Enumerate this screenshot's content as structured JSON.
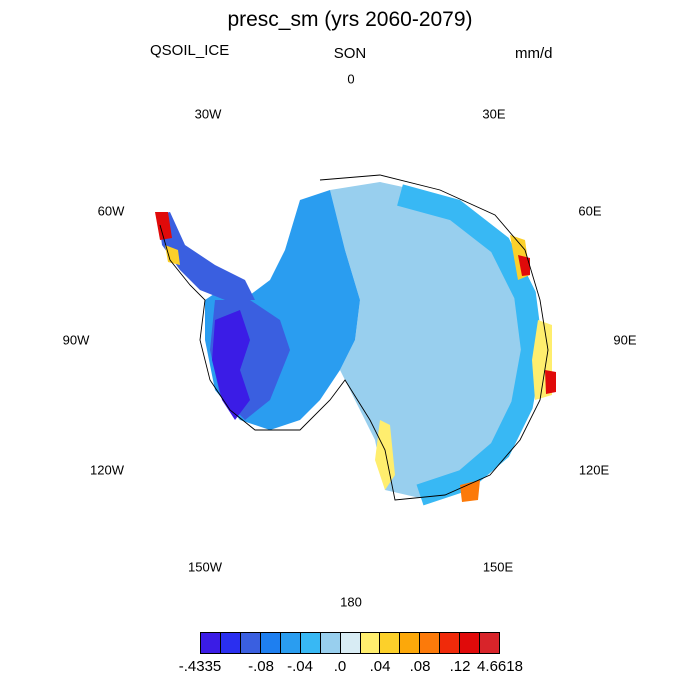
{
  "title": "presc_sm (yrs 2060-2079)",
  "left_string": "QSOIL_ICE",
  "center_string": "SON",
  "right_string": "mm/d",
  "lon_labels": {
    "l0": "0",
    "l30e": "30E",
    "l60e": "60E",
    "l90e": "90E",
    "l120e": "120E",
    "l150e": "150E",
    "l180": "180",
    "l150w": "150W",
    "l120w": "120W",
    "l90w": "90W",
    "l60w": "60W",
    "l30w": "30W"
  },
  "colorbar": {
    "colors": [
      "#3b1ce6",
      "#2a2ff0",
      "#3a5fe0",
      "#1e7ff0",
      "#2a9df0",
      "#38b8f4",
      "#98cfee",
      "#d8ecf4",
      "#ffee6e",
      "#fcd02a",
      "#fca80a",
      "#fc7a0a",
      "#f02a0a",
      "#e00a0a",
      "#d8242a"
    ],
    "labels": [
      "-.4335",
      "-.08",
      "-.04",
      ".0",
      ".04",
      ".08",
      ".12",
      "4.6618"
    ]
  }
}
